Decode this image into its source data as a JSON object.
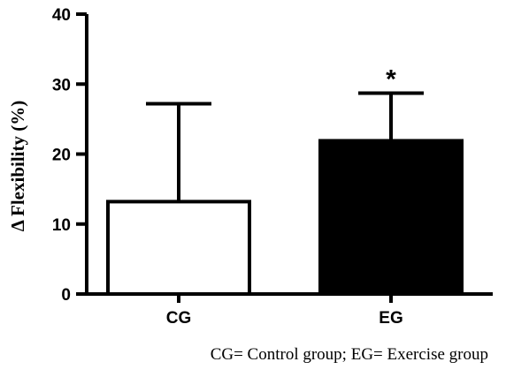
{
  "chart_data": {
    "type": "bar",
    "categories": [
      "CG",
      "EG"
    ],
    "values": [
      13.2,
      21.9
    ],
    "error_upper": [
      27.2,
      28.7
    ],
    "bar_colors": [
      "#ffffff",
      "#000000"
    ],
    "ylabel": "Δ Flexibility (%)",
    "xlabel": "",
    "ylim": [
      0,
      40
    ],
    "yticks": [
      "0",
      "10",
      "20",
      "30",
      "40"
    ],
    "annotations": [
      {
        "category": "EG",
        "text": "*"
      }
    ],
    "caption": "CG= Control group; EG= Exercise group",
    "grid": false
  }
}
